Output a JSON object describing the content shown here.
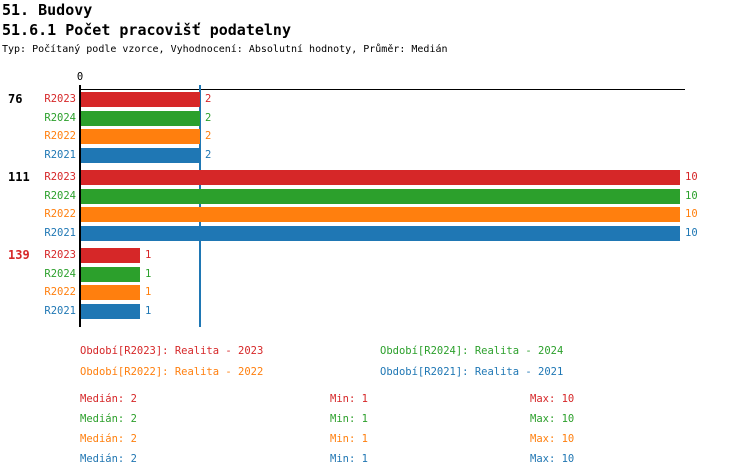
{
  "header": {
    "title": "51. Budovy",
    "subtitle": "51.6.1 Počet pracovišť podatelny",
    "meta": "Typ: Počítaný podle vzorce, Vyhodnocení: Absolutní hodnoty, Průměr: Medián"
  },
  "colors": {
    "R2023": "#d62728",
    "R2024": "#2ca02c",
    "R2022": "#ff7f0e",
    "R2021": "#1f77b4",
    "black": "#000000"
  },
  "chart_data": {
    "type": "bar",
    "orientation": "horizontal",
    "title": "51.6.1 Počet pracovišť podatelny",
    "x_axis": {
      "zero_label": "0",
      "min": 0,
      "max": 10,
      "gridlines": false,
      "median_marker_value": 2,
      "median_marker_color": "#1f77b4"
    },
    "series_order": [
      "R2023",
      "R2024",
      "R2022",
      "R2021"
    ],
    "series_colors": {
      "R2023": "#d62728",
      "R2024": "#2ca02c",
      "R2022": "#ff7f0e",
      "R2021": "#1f77b4"
    },
    "groups": [
      {
        "label": "76",
        "label_color": "#000000",
        "values": {
          "R2023": 2,
          "R2024": 2,
          "R2022": 2,
          "R2021": 2
        }
      },
      {
        "label": "111",
        "label_color": "#000000",
        "values": {
          "R2023": 10,
          "R2024": 10,
          "R2022": 10,
          "R2021": 10
        }
      },
      {
        "label": "139",
        "label_color": "#d62728",
        "values": {
          "R2023": 1,
          "R2024": 1,
          "R2022": 1,
          "R2021": 1
        }
      }
    ]
  },
  "legend": {
    "items": [
      {
        "text": "Období[R2023]: Realita - 2023",
        "color": "#d62728"
      },
      {
        "text": "Období[R2024]: Realita - 2024",
        "color": "#2ca02c"
      },
      {
        "text": "Období[R2022]: Realita - 2022",
        "color": "#ff7f0e"
      },
      {
        "text": "Období[R2021]: Realita - 2021",
        "color": "#1f77b4"
      }
    ]
  },
  "stats": {
    "rows": [
      {
        "median": "Medián: 2",
        "min": "Min: 1",
        "max": "Max: 10",
        "color": "#d62728"
      },
      {
        "median": "Medián: 2",
        "min": "Min: 1",
        "max": "Max: 10",
        "color": "#2ca02c"
      },
      {
        "median": "Medián: 2",
        "min": "Min: 1",
        "max": "Max: 10",
        "color": "#ff7f0e"
      },
      {
        "median": "Medián: 2",
        "min": "Min: 1",
        "max": "Max: 10",
        "color": "#1f77b4"
      }
    ]
  }
}
